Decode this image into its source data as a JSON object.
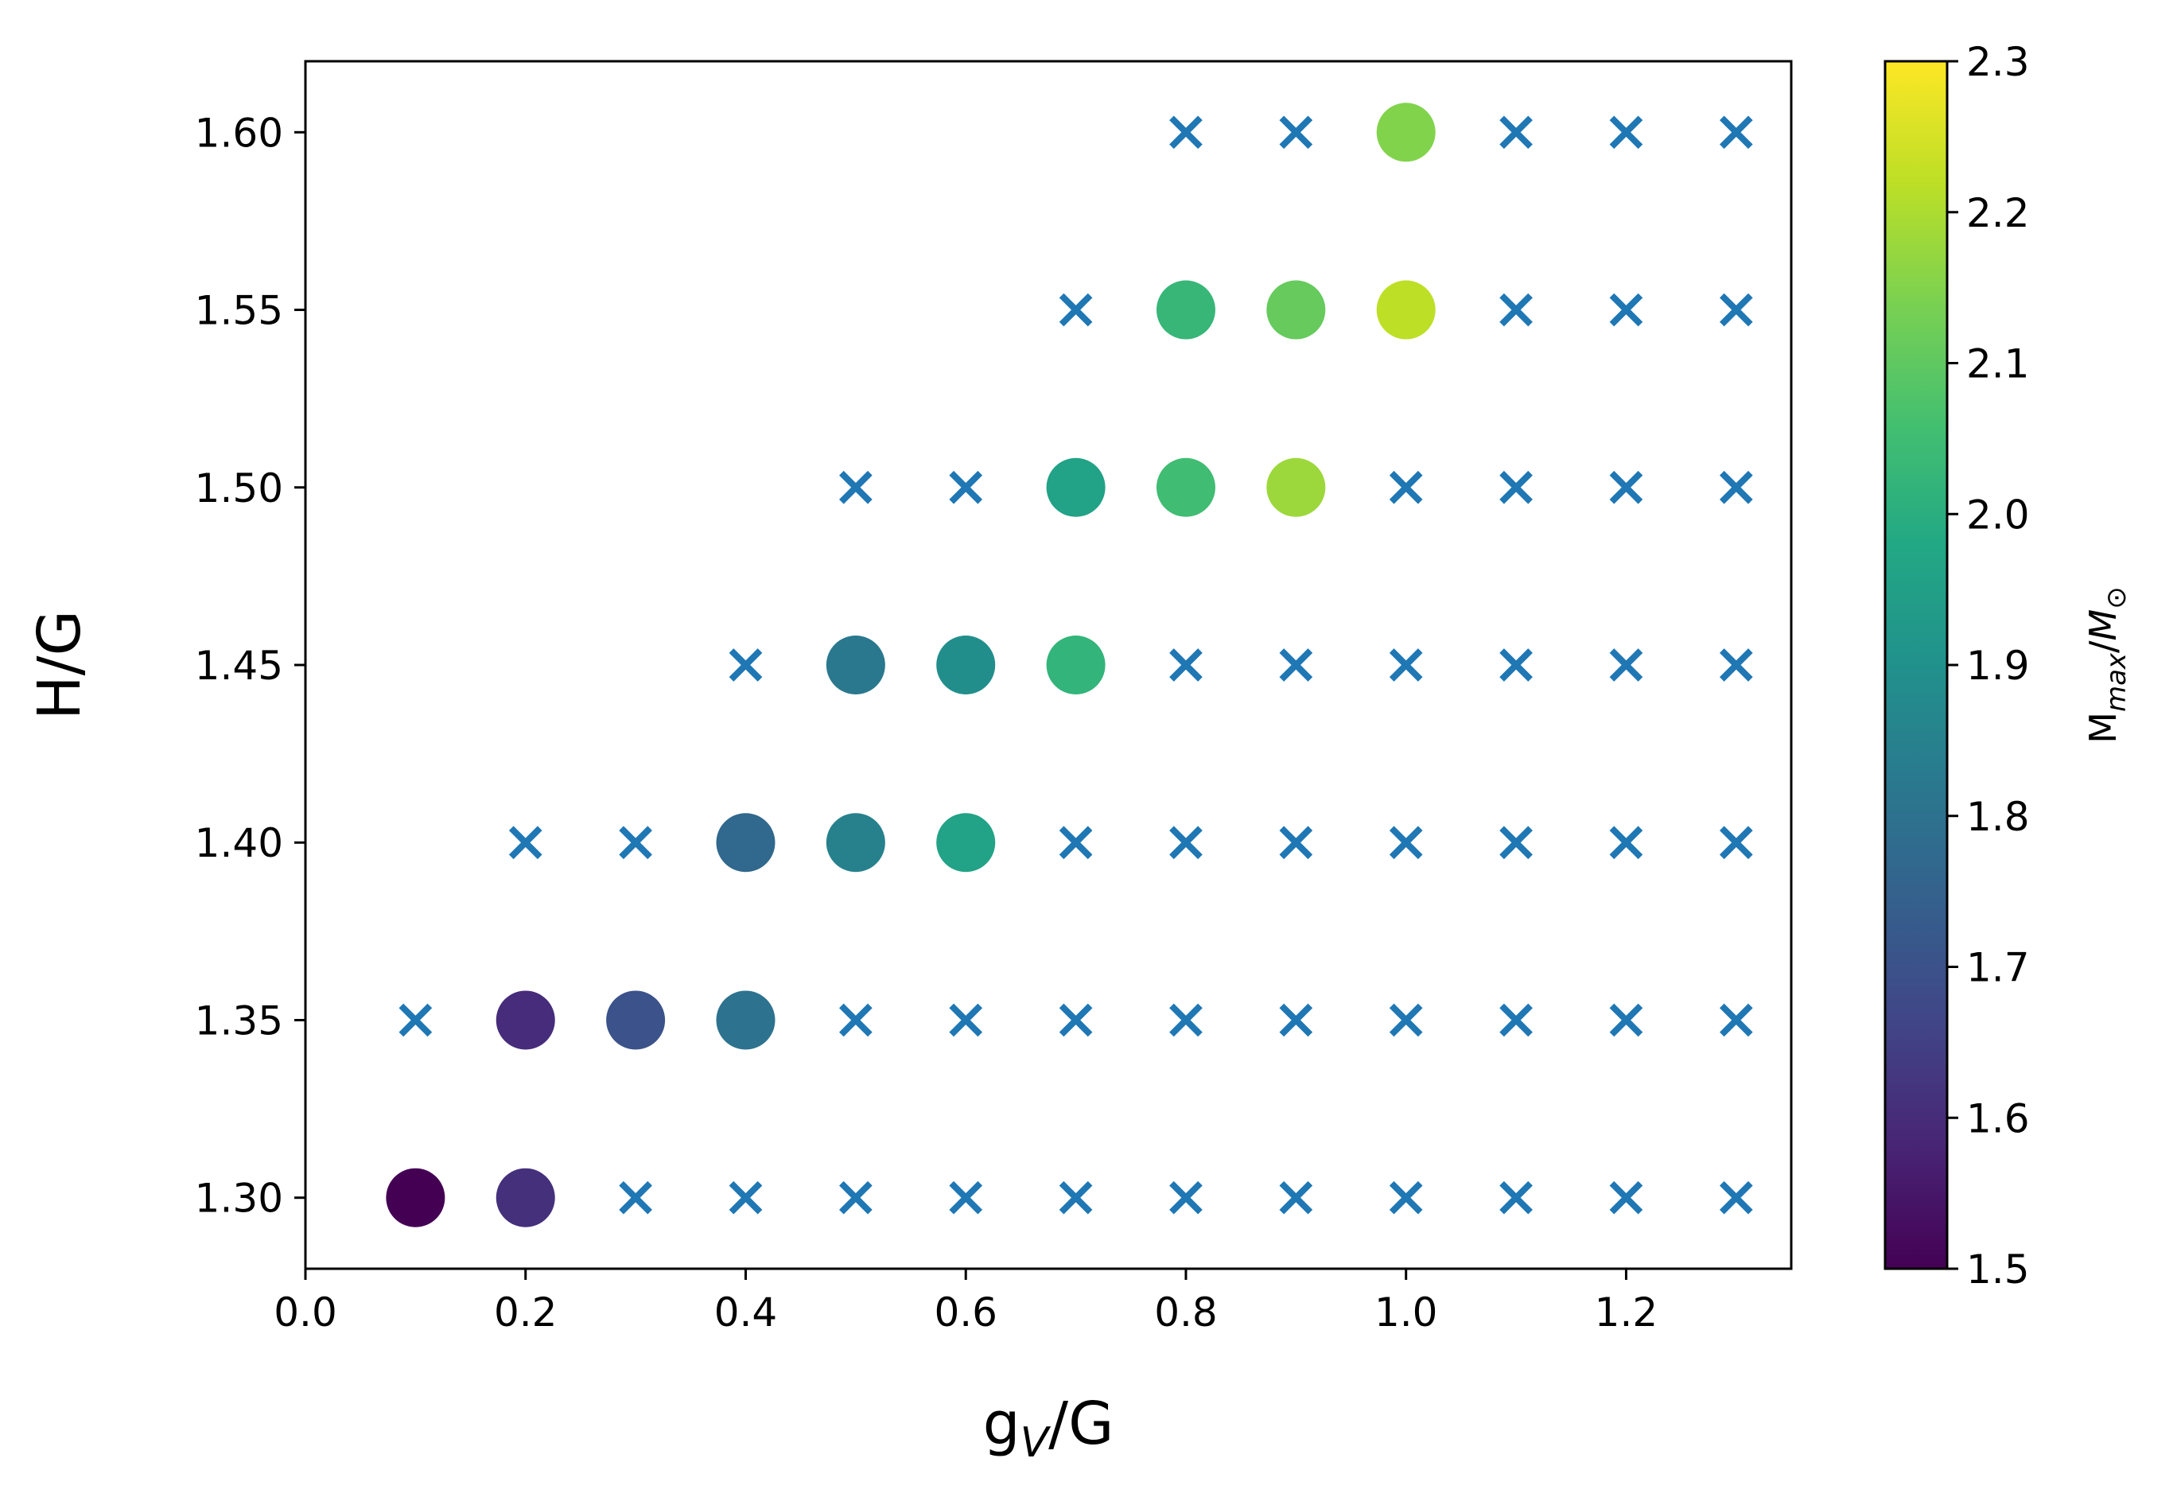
{
  "chart_data": {
    "type": "scatter",
    "xlabel_main": "g",
    "xlabel_sub": "V",
    "xlabel_tail": "/G",
    "ylabel": "H/G",
    "xlim": [
      0.0,
      1.35
    ],
    "ylim": [
      1.28,
      1.62
    ],
    "xticks": [
      0.0,
      0.2,
      0.4,
      0.6,
      0.8,
      1.0,
      1.2
    ],
    "xtick_labels": [
      "0.0",
      "0.2",
      "0.4",
      "0.6",
      "0.8",
      "1.0",
      "1.2"
    ],
    "yticks": [
      1.3,
      1.35,
      1.4,
      1.45,
      1.5,
      1.55,
      1.6
    ],
    "ytick_labels": [
      "1.30",
      "1.35",
      "1.40",
      "1.45",
      "1.50",
      "1.55",
      "1.60"
    ],
    "grid": false,
    "colorbar": {
      "colormap": "viridis",
      "range": [
        1.5,
        2.3
      ],
      "ticks": [
        1.5,
        1.6,
        1.7,
        1.8,
        1.9,
        2.0,
        2.1,
        2.2,
        2.3
      ],
      "tick_labels": [
        "1.5",
        "1.6",
        "1.7",
        "1.8",
        "1.9",
        "2.0",
        "2.1",
        "2.2",
        "2.3"
      ],
      "label_main": "M",
      "label_sub": "max",
      "label_sep": "/",
      "label_m": "M",
      "label_sun": "⊙"
    },
    "marker_color": "#1f77b4",
    "circles": [
      {
        "x": 0.1,
        "y": 1.3,
        "value": 1.5
      },
      {
        "x": 0.2,
        "y": 1.3,
        "value": 1.61
      },
      {
        "x": 0.2,
        "y": 1.35,
        "value": 1.6
      },
      {
        "x": 0.3,
        "y": 1.35,
        "value": 1.7
      },
      {
        "x": 0.4,
        "y": 1.35,
        "value": 1.8
      },
      {
        "x": 0.4,
        "y": 1.4,
        "value": 1.77
      },
      {
        "x": 0.5,
        "y": 1.4,
        "value": 1.85
      },
      {
        "x": 0.6,
        "y": 1.4,
        "value": 1.96
      },
      {
        "x": 0.5,
        "y": 1.45,
        "value": 1.82
      },
      {
        "x": 0.6,
        "y": 1.45,
        "value": 1.89
      },
      {
        "x": 0.7,
        "y": 1.45,
        "value": 2.02
      },
      {
        "x": 0.7,
        "y": 1.5,
        "value": 1.96
      },
      {
        "x": 0.8,
        "y": 1.5,
        "value": 2.05
      },
      {
        "x": 0.9,
        "y": 1.5,
        "value": 2.18
      },
      {
        "x": 0.8,
        "y": 1.55,
        "value": 2.03
      },
      {
        "x": 0.9,
        "y": 1.55,
        "value": 2.11
      },
      {
        "x": 1.0,
        "y": 1.55,
        "value": 2.22
      },
      {
        "x": 1.0,
        "y": 1.6,
        "value": 2.15
      }
    ],
    "crosses": [
      {
        "x": 0.3,
        "y": 1.3
      },
      {
        "x": 0.4,
        "y": 1.3
      },
      {
        "x": 0.5,
        "y": 1.3
      },
      {
        "x": 0.6,
        "y": 1.3
      },
      {
        "x": 0.7,
        "y": 1.3
      },
      {
        "x": 0.8,
        "y": 1.3
      },
      {
        "x": 0.9,
        "y": 1.3
      },
      {
        "x": 1.0,
        "y": 1.3
      },
      {
        "x": 1.1,
        "y": 1.3
      },
      {
        "x": 1.2,
        "y": 1.3
      },
      {
        "x": 1.3,
        "y": 1.3
      },
      {
        "x": 0.1,
        "y": 1.35
      },
      {
        "x": 0.5,
        "y": 1.35
      },
      {
        "x": 0.6,
        "y": 1.35
      },
      {
        "x": 0.7,
        "y": 1.35
      },
      {
        "x": 0.8,
        "y": 1.35
      },
      {
        "x": 0.9,
        "y": 1.35
      },
      {
        "x": 1.0,
        "y": 1.35
      },
      {
        "x": 1.1,
        "y": 1.35
      },
      {
        "x": 1.2,
        "y": 1.35
      },
      {
        "x": 1.3,
        "y": 1.35
      },
      {
        "x": 0.2,
        "y": 1.4
      },
      {
        "x": 0.3,
        "y": 1.4
      },
      {
        "x": 0.7,
        "y": 1.4
      },
      {
        "x": 0.8,
        "y": 1.4
      },
      {
        "x": 0.9,
        "y": 1.4
      },
      {
        "x": 1.0,
        "y": 1.4
      },
      {
        "x": 1.1,
        "y": 1.4
      },
      {
        "x": 1.2,
        "y": 1.4
      },
      {
        "x": 1.3,
        "y": 1.4
      },
      {
        "x": 0.4,
        "y": 1.45
      },
      {
        "x": 0.8,
        "y": 1.45
      },
      {
        "x": 0.9,
        "y": 1.45
      },
      {
        "x": 1.0,
        "y": 1.45
      },
      {
        "x": 1.1,
        "y": 1.45
      },
      {
        "x": 1.2,
        "y": 1.45
      },
      {
        "x": 1.3,
        "y": 1.45
      },
      {
        "x": 0.5,
        "y": 1.5
      },
      {
        "x": 0.6,
        "y": 1.5
      },
      {
        "x": 1.0,
        "y": 1.5
      },
      {
        "x": 1.1,
        "y": 1.5
      },
      {
        "x": 1.2,
        "y": 1.5
      },
      {
        "x": 1.3,
        "y": 1.5
      },
      {
        "x": 0.7,
        "y": 1.55
      },
      {
        "x": 1.1,
        "y": 1.55
      },
      {
        "x": 1.2,
        "y": 1.55
      },
      {
        "x": 1.3,
        "y": 1.55
      },
      {
        "x": 0.8,
        "y": 1.6
      },
      {
        "x": 0.9,
        "y": 1.6
      },
      {
        "x": 1.1,
        "y": 1.6
      },
      {
        "x": 1.2,
        "y": 1.6
      },
      {
        "x": 1.3,
        "y": 1.6
      }
    ]
  }
}
